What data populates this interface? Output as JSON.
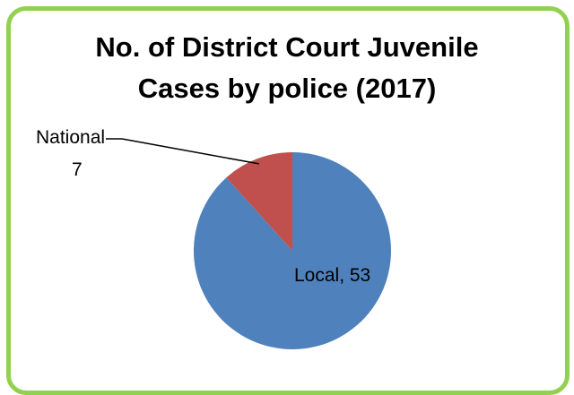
{
  "chart_data": {
    "type": "pie",
    "title": "No. of District Court Juvenile Cases by police (2017)",
    "title_lines": [
      "No. of District Court Juvenile",
      "Cases by police (2017)"
    ],
    "categories": [
      "Local",
      "National"
    ],
    "values": [
      53,
      7
    ],
    "labels": [
      {
        "category": "Local",
        "value_text": "Local, 53"
      },
      {
        "category": "National",
        "name_text": "National",
        "value_text": "7"
      }
    ],
    "colors": {
      "Local": "#4f81bd",
      "National": "#c0504d"
    },
    "start_angle": "12 o'clock",
    "direction": "clockwise",
    "legend": "none"
  },
  "frame": {
    "border_color": "#92d050"
  }
}
